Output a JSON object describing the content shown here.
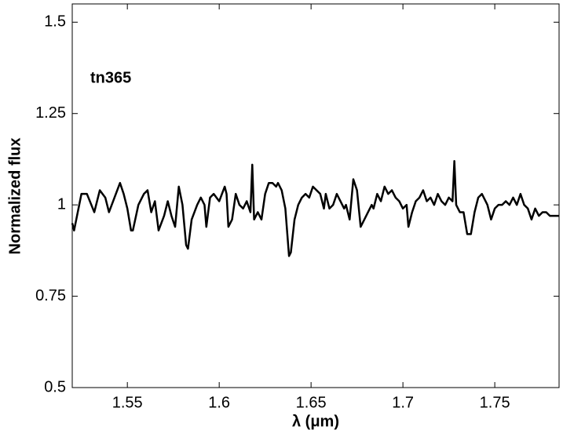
{
  "chart_data": {
    "type": "line",
    "annotation": "tn365",
    "x_label": "λ (μm)",
    "y_label": "Normalized flux",
    "color": "#000000",
    "xlim": [
      1.52,
      1.785
    ],
    "ylim": [
      0.5,
      1.55
    ],
    "xticks": [
      1.55,
      1.6,
      1.65,
      1.7,
      1.75
    ],
    "yticks": [
      0.5,
      0.75,
      1,
      1.25,
      1.5
    ],
    "x": [
      1.52,
      1.521,
      1.525,
      1.528,
      1.532,
      1.535,
      1.538,
      1.54,
      1.543,
      1.546,
      1.548,
      1.55,
      1.552,
      1.553,
      1.556,
      1.559,
      1.561,
      1.563,
      1.565,
      1.567,
      1.57,
      1.572,
      1.574,
      1.576,
      1.578,
      1.58,
      1.582,
      1.583,
      1.585,
      1.588,
      1.59,
      1.592,
      1.593,
      1.595,
      1.597,
      1.6,
      1.603,
      1.604,
      1.605,
      1.607,
      1.609,
      1.611,
      1.613,
      1.615,
      1.617,
      1.618,
      1.619,
      1.621,
      1.623,
      1.625,
      1.627,
      1.629,
      1.631,
      1.632,
      1.634,
      1.636,
      1.638,
      1.639,
      1.641,
      1.643,
      1.645,
      1.647,
      1.649,
      1.651,
      1.653,
      1.655,
      1.657,
      1.658,
      1.66,
      1.662,
      1.664,
      1.666,
      1.668,
      1.669,
      1.671,
      1.673,
      1.675,
      1.677,
      1.679,
      1.681,
      1.683,
      1.684,
      1.686,
      1.688,
      1.69,
      1.692,
      1.694,
      1.696,
      1.698,
      1.7,
      1.702,
      1.703,
      1.705,
      1.707,
      1.709,
      1.711,
      1.713,
      1.715,
      1.717,
      1.719,
      1.721,
      1.723,
      1.725,
      1.727,
      1.728,
      1.729,
      1.731,
      1.733,
      1.735,
      1.737,
      1.739,
      1.741,
      1.743,
      1.745,
      1.746,
      1.748,
      1.75,
      1.752,
      1.754,
      1.756,
      1.758,
      1.76,
      1.762,
      1.764,
      1.766,
      1.768,
      1.77,
      1.772,
      1.774,
      1.776,
      1.778,
      1.78,
      1.785
    ],
    "values": [
      0.95,
      0.93,
      1.03,
      1.03,
      0.98,
      1.04,
      1.02,
      0.98,
      1.02,
      1.06,
      1.03,
      0.99,
      0.93,
      0.93,
      1.0,
      1.03,
      1.04,
      0.98,
      1.01,
      0.93,
      0.97,
      1.01,
      0.97,
      0.94,
      1.05,
      1.0,
      0.89,
      0.88,
      0.96,
      1.0,
      1.02,
      1.0,
      0.94,
      1.02,
      1.03,
      1.01,
      1.05,
      1.03,
      0.94,
      0.96,
      1.03,
      1.0,
      0.99,
      1.01,
      0.98,
      1.11,
      0.96,
      0.98,
      0.96,
      1.03,
      1.06,
      1.06,
      1.05,
      1.06,
      1.04,
      0.99,
      0.86,
      0.87,
      0.96,
      1.0,
      1.02,
      1.03,
      1.02,
      1.05,
      1.04,
      1.03,
      0.99,
      1.03,
      0.99,
      1.0,
      1.03,
      1.01,
      0.99,
      1.0,
      0.96,
      1.07,
      1.04,
      0.94,
      0.96,
      0.98,
      1.0,
      0.99,
      1.03,
      1.01,
      1.05,
      1.03,
      1.04,
      1.02,
      1.01,
      0.99,
      1.0,
      0.94,
      0.98,
      1.01,
      1.02,
      1.04,
      1.01,
      1.02,
      1.0,
      1.03,
      1.01,
      1.0,
      1.02,
      1.01,
      1.12,
      1.0,
      0.98,
      0.98,
      0.92,
      0.92,
      0.98,
      1.02,
      1.03,
      1.01,
      1.0,
      0.96,
      0.99,
      1.0,
      1.0,
      1.01,
      1.0,
      1.02,
      1.0,
      1.03,
      1.0,
      0.99,
      0.96,
      0.99,
      0.97,
      0.98,
      0.98,
      0.97,
      0.97
    ]
  }
}
